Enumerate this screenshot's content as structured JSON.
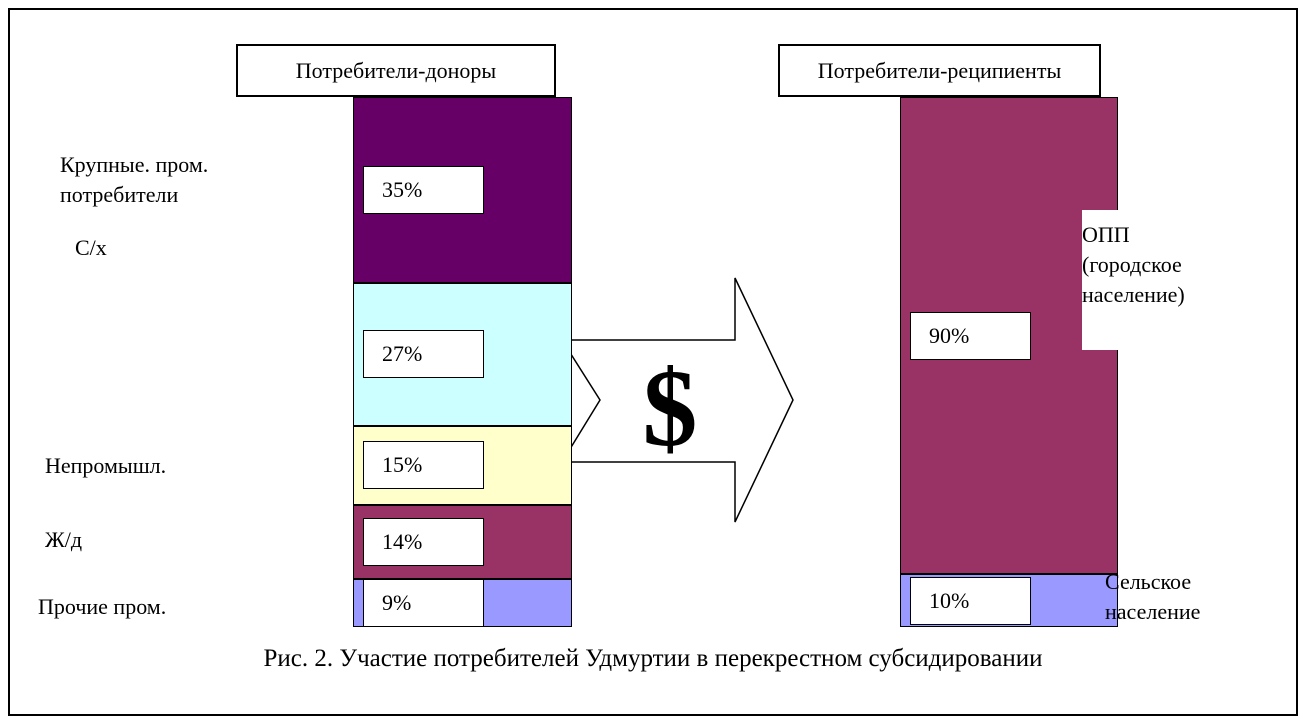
{
  "chart_data": {
    "type": "stacked_bar",
    "caption": "Рис. 2. Участие потребителей Удмуртии в перекрестном субсидировании",
    "annotation": "$",
    "series": [
      {
        "name": "Потребители-доноры",
        "categories": [
          "Крупные. пром. потребители",
          "С/х",
          "Непромышл.",
          "Ж/д",
          "Прочие пром."
        ],
        "values": [
          35,
          27,
          15,
          14,
          9
        ],
        "value_labels": [
          "35%",
          "27%",
          "15%",
          "14%",
          "9%"
        ],
        "colors": [
          "#660066",
          "#ccffff",
          "#ffffcc",
          "#993366",
          "#9999ff"
        ]
      },
      {
        "name": "Потребители-реципиенты",
        "categories": [
          "ОПП (городское население)",
          "Сельское население"
        ],
        "values": [
          90,
          10
        ],
        "value_labels": [
          "90%",
          "10%"
        ],
        "colors": [
          "#993366",
          "#9999ff"
        ]
      }
    ]
  }
}
